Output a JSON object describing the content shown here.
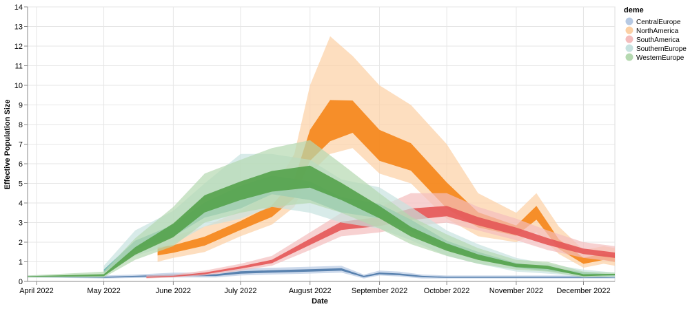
{
  "chart_data": {
    "type": "area",
    "xlabel": "Date",
    "ylabel": "Effective Population Size",
    "ylim": [
      0,
      14
    ],
    "xlim": [
      "2022-03-28",
      "2022-12-15"
    ],
    "y_ticks": [
      0,
      1,
      2,
      3,
      4,
      5,
      6,
      7,
      8,
      9,
      10,
      11,
      12,
      13,
      14
    ],
    "x_ticks": [
      {
        "date": "2022-04-01",
        "label": "April 2022"
      },
      {
        "date": "2022-05-01",
        "label": "May 2022"
      },
      {
        "date": "2022-06-01",
        "label": "June 2022"
      },
      {
        "date": "2022-07-01",
        "label": "July 2022"
      },
      {
        "date": "2022-08-01",
        "label": "August 2022"
      },
      {
        "date": "2022-09-01",
        "label": "September 2022"
      },
      {
        "date": "2022-10-01",
        "label": "October 2022"
      },
      {
        "date": "2022-11-01",
        "label": "November 2022"
      },
      {
        "date": "2022-12-01",
        "label": "December 2022"
      }
    ],
    "grid": true,
    "legend": {
      "title": "deme",
      "placement": "right"
    },
    "series": [
      {
        "name": "CentralEurope",
        "color": "#4c78a8",
        "light": "#b6c9e3",
        "x": [
          "2022-03-28",
          "2022-05-01",
          "2022-05-15",
          "2022-06-01",
          "2022-06-20",
          "2022-07-01",
          "2022-07-15",
          "2022-08-01",
          "2022-08-15",
          "2022-08-25",
          "2022-09-01",
          "2022-09-10",
          "2022-09-20",
          "2022-10-01",
          "2022-10-15",
          "2022-11-01",
          "2022-11-15",
          "2022-12-01",
          "2022-12-15"
        ],
        "mean": [
          0.25,
          0.2,
          0.25,
          0.3,
          0.32,
          0.45,
          0.5,
          0.55,
          0.6,
          0.25,
          0.4,
          0.35,
          0.25,
          0.2,
          0.2,
          0.2,
          0.2,
          0.2,
          0.2
        ],
        "lower": [
          0.2,
          0.15,
          0.18,
          0.2,
          0.2,
          0.3,
          0.35,
          0.4,
          0.45,
          0.15,
          0.3,
          0.25,
          0.15,
          0.15,
          0.15,
          0.15,
          0.15,
          0.15,
          0.15
        ],
        "upper": [
          0.3,
          0.3,
          0.35,
          0.45,
          0.45,
          0.65,
          0.7,
          0.75,
          0.8,
          0.35,
          0.55,
          0.5,
          0.35,
          0.3,
          0.3,
          0.3,
          0.3,
          0.3,
          0.3
        ]
      },
      {
        "name": "NorthAmerica",
        "color": "#f58518",
        "light": "#fcd0a4",
        "x": [
          "2022-05-25",
          "2022-06-01",
          "2022-06-15",
          "2022-07-01",
          "2022-07-15",
          "2022-07-25",
          "2022-08-01",
          "2022-08-10",
          "2022-08-20",
          "2022-09-01",
          "2022-09-15",
          "2022-10-01",
          "2022-10-15",
          "2022-11-01",
          "2022-11-10",
          "2022-11-20",
          "2022-12-01",
          "2022-12-10",
          "2022-12-15"
        ],
        "mean": [
          1.5,
          1.6,
          2.0,
          2.8,
          3.5,
          4.5,
          6.5,
          7.5,
          8.0,
          6.5,
          6.0,
          4.0,
          3.0,
          2.5,
          3.5,
          1.8,
          1.0,
          1.2,
          1.1
        ],
        "lower": [
          1.0,
          1.2,
          1.5,
          2.3,
          2.9,
          3.8,
          5.5,
          6.5,
          6.8,
          5.5,
          5.0,
          3.2,
          2.3,
          2.0,
          2.5,
          1.4,
          0.7,
          0.9,
          0.8
        ],
        "upper": [
          2.2,
          2.3,
          2.8,
          3.6,
          4.6,
          6.5,
          10.0,
          12.5,
          11.5,
          10.0,
          9.0,
          7.0,
          4.5,
          3.5,
          4.5,
          2.8,
          1.6,
          1.8,
          1.7
        ]
      },
      {
        "name": "SouthAmerica",
        "color": "#e45756",
        "light": "#f4bdbd",
        "x": [
          "2022-05-20",
          "2022-06-01",
          "2022-06-15",
          "2022-07-01",
          "2022-07-15",
          "2022-08-01",
          "2022-08-15",
          "2022-09-01",
          "2022-09-15",
          "2022-10-01",
          "2022-10-15",
          "2022-11-01",
          "2022-11-15",
          "2022-12-01",
          "2022-12-15"
        ],
        "mean": [
          0.2,
          0.25,
          0.4,
          0.7,
          1.0,
          2.0,
          2.8,
          3.0,
          3.3,
          3.5,
          3.0,
          2.5,
          2.0,
          1.5,
          1.3
        ],
        "lower": [
          0.15,
          0.2,
          0.3,
          0.55,
          0.8,
          1.6,
          2.3,
          2.5,
          2.8,
          3.0,
          2.6,
          2.1,
          1.6,
          1.2,
          1.0
        ],
        "upper": [
          0.3,
          0.35,
          0.55,
          0.9,
          1.3,
          2.5,
          3.5,
          3.8,
          4.5,
          4.5,
          3.8,
          3.2,
          2.6,
          2.0,
          1.8
        ]
      },
      {
        "name": "SouthernEurope",
        "color": "#72b7b2",
        "light": "#c7e2e0",
        "x": [
          "2022-05-01",
          "2022-05-15",
          "2022-06-01",
          "2022-06-15",
          "2022-07-01",
          "2022-07-15",
          "2022-08-01",
          "2022-08-15",
          "2022-09-01",
          "2022-09-15",
          "2022-10-01",
          "2022-10-15",
          "2022-11-01",
          "2022-11-15",
          "2022-12-01",
          "2022-12-15"
        ],
        "mean": [
          0.5,
          1.8,
          2.5,
          3.5,
          4.0,
          4.8,
          4.5,
          3.8,
          3.5,
          2.8,
          1.8,
          1.3,
          0.8,
          0.6,
          0.4,
          0.3
        ],
        "lower": [
          0.3,
          1.3,
          1.9,
          2.8,
          3.2,
          3.8,
          3.5,
          3.0,
          2.7,
          2.1,
          1.3,
          0.9,
          0.5,
          0.4,
          0.25,
          0.2
        ],
        "upper": [
          0.8,
          2.6,
          3.6,
          5.0,
          6.5,
          6.5,
          6.2,
          5.2,
          4.8,
          3.8,
          2.6,
          1.9,
          1.2,
          0.9,
          0.6,
          0.45
        ]
      },
      {
        "name": "WesternEurope",
        "color": "#54a24b",
        "light": "#b5d9b0",
        "x": [
          "2022-03-28",
          "2022-05-01",
          "2022-05-15",
          "2022-06-01",
          "2022-06-15",
          "2022-07-01",
          "2022-07-15",
          "2022-08-01",
          "2022-08-15",
          "2022-09-01",
          "2022-09-15",
          "2022-10-01",
          "2022-10-15",
          "2022-11-01",
          "2022-11-15",
          "2022-12-01",
          "2022-12-15"
        ],
        "mean": [
          0.25,
          0.3,
          1.5,
          2.5,
          3.8,
          4.5,
          5.0,
          5.2,
          4.5,
          3.5,
          2.5,
          1.7,
          1.2,
          0.8,
          0.7,
          0.3,
          0.35
        ],
        "lower": [
          0.2,
          0.2,
          1.1,
          1.8,
          3.0,
          3.5,
          3.8,
          4.0,
          3.5,
          2.7,
          1.9,
          1.3,
          0.9,
          0.6,
          0.5,
          0.2,
          0.25
        ],
        "upper": [
          0.3,
          0.5,
          2.2,
          3.8,
          5.5,
          6.2,
          6.8,
          7.2,
          6.0,
          4.5,
          3.3,
          2.4,
          1.7,
          1.1,
          1.0,
          0.5,
          0.45
        ]
      }
    ]
  }
}
